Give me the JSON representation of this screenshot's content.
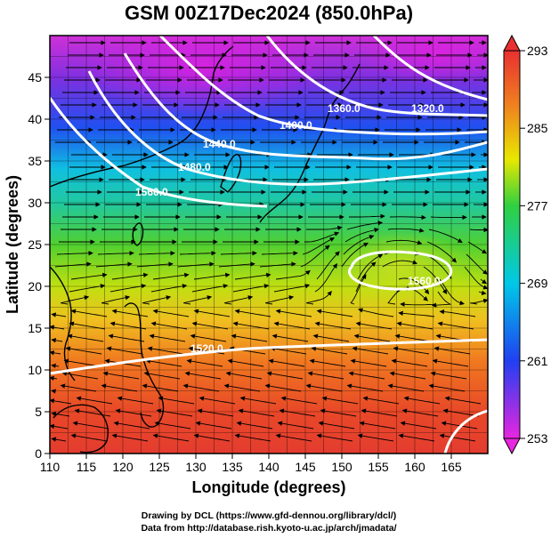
{
  "title": "GSM 00Z17Dec2024 (850.0hPa)",
  "x_axis": {
    "label": "Longitude (degrees)",
    "range": [
      110,
      170
    ],
    "ticks": [
      "110",
      "115",
      "120",
      "125",
      "130",
      "135",
      "140",
      "145",
      "150",
      "155",
      "160",
      "165"
    ]
  },
  "y_axis": {
    "label": "Latitude  (degrees)",
    "range": [
      0,
      50
    ],
    "ticks": [
      "0",
      "5",
      "10",
      "15",
      "20",
      "25",
      "30",
      "35",
      "40",
      "45"
    ]
  },
  "colorbar": {
    "range": [
      253,
      293
    ],
    "ticks": [
      "253",
      "261",
      "269",
      "277",
      "285",
      "293"
    ],
    "colors": [
      "#e826e0",
      "#2040f0",
      "#00c8e8",
      "#30d040",
      "#e8e800",
      "#f08020",
      "#e83030"
    ]
  },
  "contour_labels": [
    {
      "text": "1320.0"
    },
    {
      "text": "1360.0"
    },
    {
      "text": "1400.0"
    },
    {
      "text": "1440.0"
    },
    {
      "text": "1480.0"
    },
    {
      "text": "1520.0"
    },
    {
      "text": "1560.0"
    },
    {
      "text": "1560.0"
    }
  ],
  "credits": [
    "Drawing by DCL (https://www.gfd-dennou.org/library/dcl/)",
    "Data from http://database.rish.kyoto-u.ac.jp/arch/jmadata/"
  ]
}
